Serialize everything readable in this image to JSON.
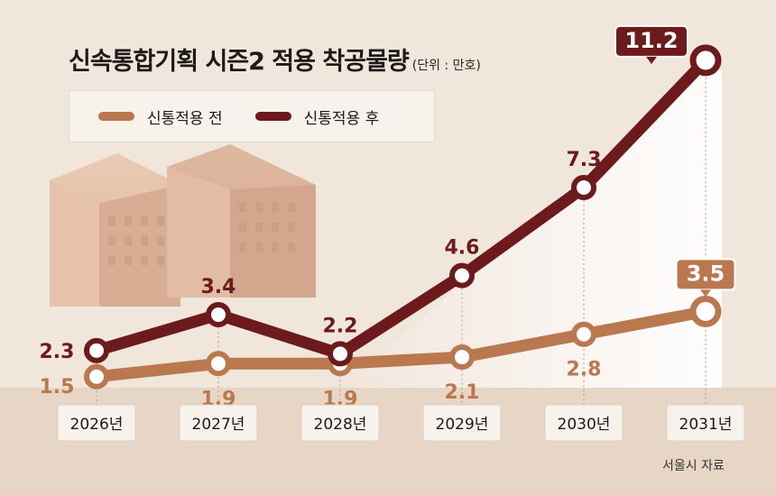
{
  "title": "신속통합기획 시즌2 적용 착공물량",
  "unit": "(단위 : 만호)",
  "legend": {
    "before": "신통적용 전",
    "after": "신통적용 후"
  },
  "source": "서울시 자료",
  "colors": {
    "before": "#b9784e",
    "after": "#6c1a1c",
    "background": "#f1e6dc"
  },
  "chart_data": {
    "type": "line",
    "categories": [
      "2026년",
      "2027년",
      "2028년",
      "2029년",
      "2030년",
      "2031년"
    ],
    "series": [
      {
        "name": "신통적용 전",
        "values": [
          1.5,
          1.9,
          1.9,
          2.1,
          2.8,
          3.5
        ]
      },
      {
        "name": "신통적용 후",
        "values": [
          2.3,
          3.4,
          2.2,
          4.6,
          7.3,
          11.2
        ]
      }
    ],
    "ylim": [
      0,
      12
    ],
    "grid": false,
    "legend_position": "top-left",
    "highlighted_labels": [
      "11.2",
      "3.5"
    ]
  }
}
